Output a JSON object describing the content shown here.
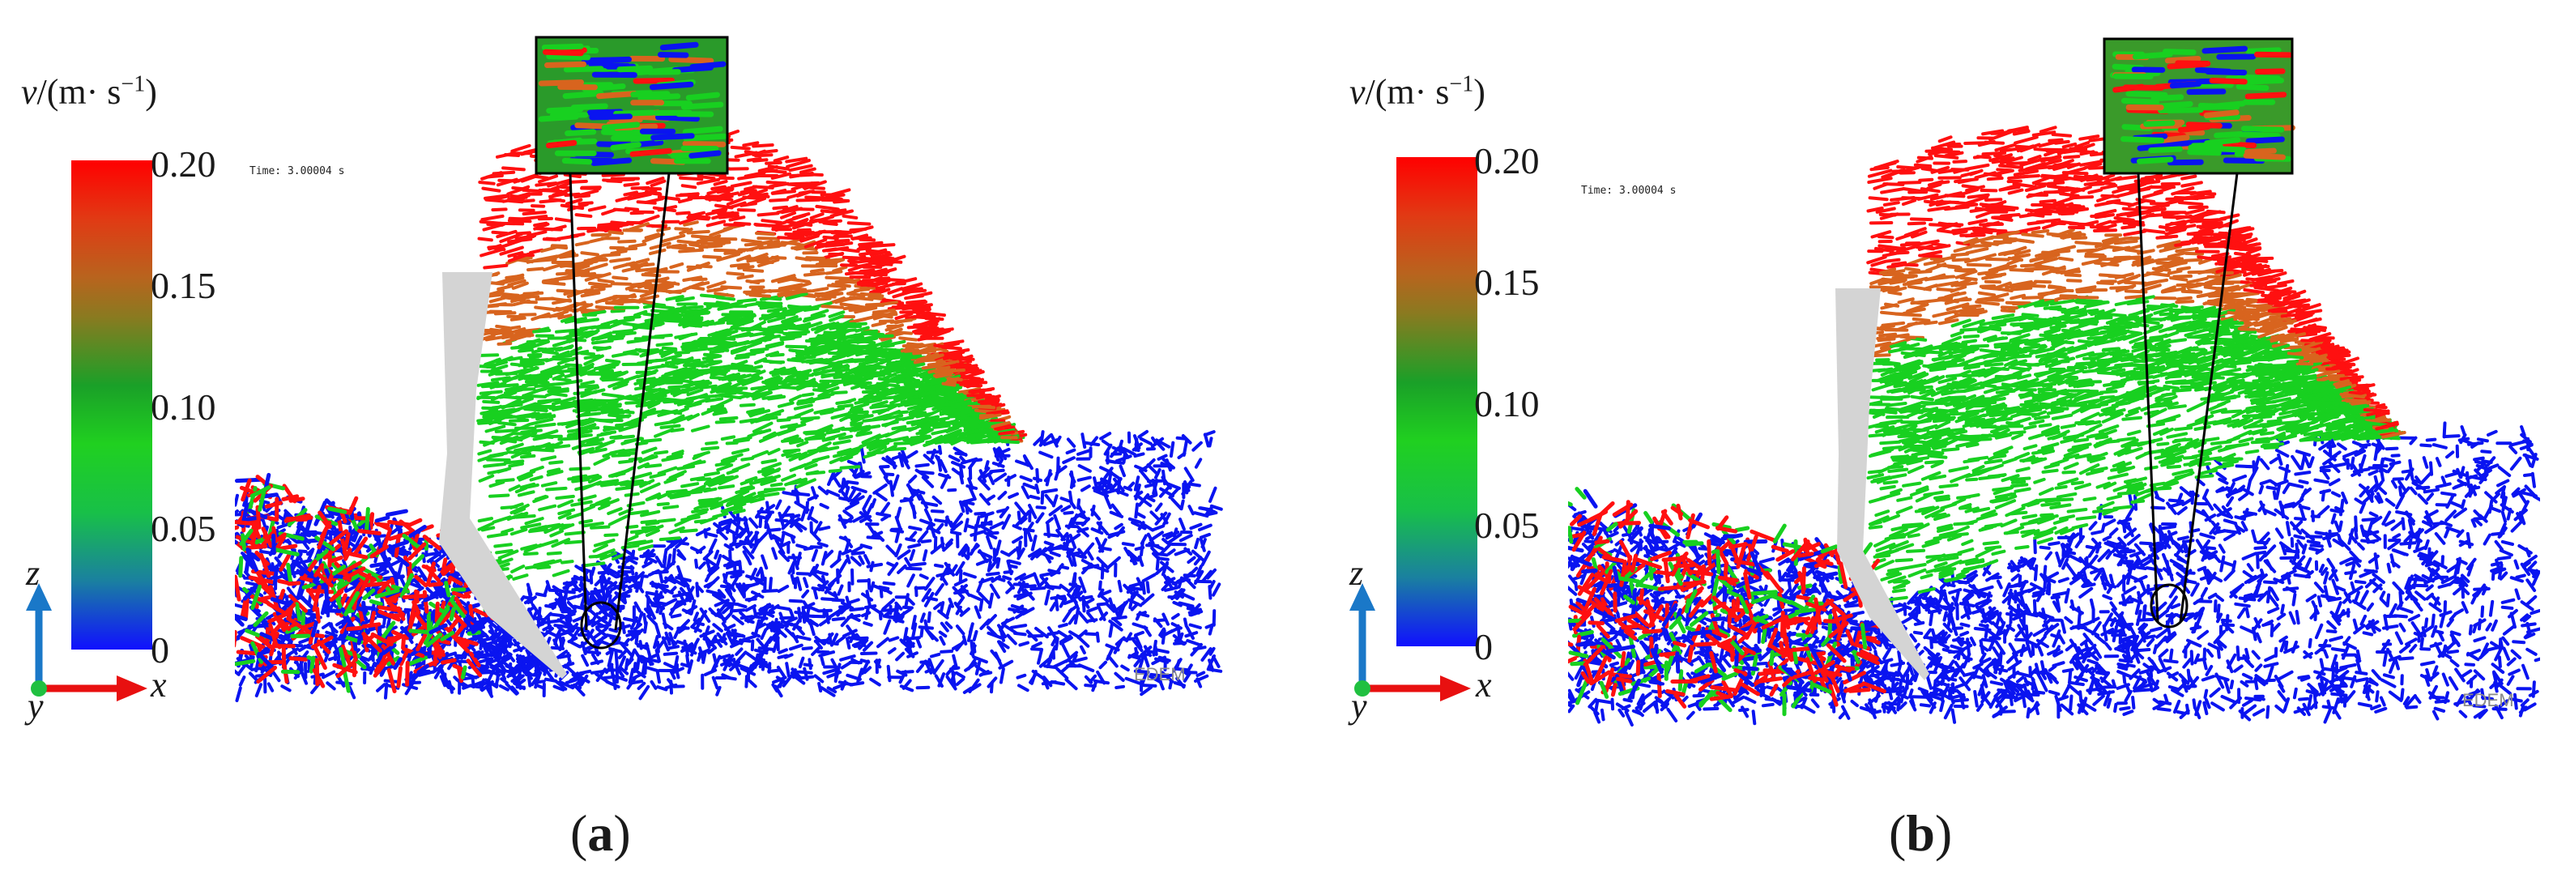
{
  "figure": {
    "colorbar_title_var": "v",
    "colorbar_title_unit": "/(m· s",
    "colorbar_title_exp": "−1",
    "colorbar_title_close": ")",
    "ticks": [
      "0.20",
      "0.15",
      "0.10",
      "0.05",
      "0"
    ],
    "time_text": "Time: 3.00004 s",
    "axis_z": "z",
    "axis_x": "x",
    "axis_y": "y",
    "watermark": "EDEM",
    "colors": {
      "red": "#ff1010",
      "orange": "#d8641e",
      "green": "#18d020",
      "blue": "#0a14f0",
      "tool_gray": "#d4d4d4",
      "axis_z_blue": "#1a78c8",
      "axis_x_red": "#e81010"
    }
  },
  "panels": [
    {
      "id": "a",
      "caption_letter": "a"
    },
    {
      "id": "b",
      "caption_letter": "b"
    }
  ]
}
